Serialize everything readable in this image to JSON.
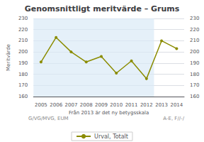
{
  "chart_data": {
    "type": "line",
    "title": "Genomsnittligt meritvärde – Grums",
    "xlabel": "Från 2013 är det ny betygsskala",
    "ylabel": "Meritvärde",
    "x": [
      2005,
      2006,
      2007,
      2008,
      2009,
      2010,
      2011,
      2012,
      2013,
      2014
    ],
    "series": [
      {
        "name": "Urval, Totalt",
        "color": "#8B8C00",
        "marker": "circle",
        "values": [
          191,
          213,
          200,
          191,
          196,
          181,
          192,
          176,
          210,
          203
        ]
      }
    ],
    "xlim": [
      2004.5,
      2014.5
    ],
    "xticks": [
      2005,
      2006,
      2007,
      2008,
      2009,
      2010,
      2011,
      2012,
      2013,
      2014
    ],
    "ylim": [
      160,
      230
    ],
    "yticks": [
      160,
      170,
      180,
      190,
      200,
      210,
      220,
      230
    ],
    "y2lim": [
      160,
      230
    ],
    "y2ticks": [
      160,
      170,
      180,
      190,
      200,
      210,
      220,
      230
    ],
    "grid": true,
    "legend": "bottom",
    "shade": {
      "x": [
        2004.5,
        2012.5
      ],
      "color": "#daeaf7"
    },
    "annotations": [
      "G/VG/MVG, EUM",
      "A-E, F//-/"
    ]
  }
}
